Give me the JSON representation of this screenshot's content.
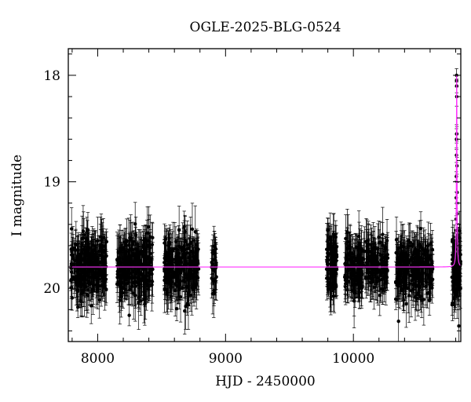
{
  "chart_data": {
    "type": "scatter",
    "title": "OGLE-2025-BLG-0524",
    "xlabel": "HJD - 2450000",
    "ylabel": "I magnitude",
    "xlim": [
      7770,
      10840
    ],
    "ylim": [
      20.5,
      17.75
    ],
    "y_inverted": true,
    "x_ticks": [
      8000,
      9000,
      10000
    ],
    "y_ticks": [
      18,
      19,
      20
    ],
    "grid": false,
    "legend": "none",
    "series": [
      {
        "kind": "observations",
        "marker": "filled-circle-with-errorbars",
        "color": "#000000",
        "baseline_mag": 19.8,
        "seasons": [
          {
            "x_start": 7790,
            "x_end": 8070,
            "mag_center": 19.8,
            "scatter": 0.13,
            "count": 260
          },
          {
            "x_start": 8150,
            "x_end": 8430,
            "mag_center": 19.8,
            "scatter": 0.13,
            "count": 260
          },
          {
            "x_start": 8520,
            "x_end": 8790,
            "mag_center": 19.8,
            "scatter": 0.13,
            "count": 240
          },
          {
            "x_start": 8890,
            "x_end": 8930,
            "mag_center": 19.8,
            "scatter": 0.12,
            "count": 30
          },
          {
            "x_start": 9790,
            "x_end": 9870,
            "mag_center": 19.78,
            "scatter": 0.14,
            "count": 90
          },
          {
            "x_start": 9930,
            "x_end": 10270,
            "mag_center": 19.8,
            "scatter": 0.13,
            "count": 250
          },
          {
            "x_start": 10330,
            "x_end": 10620,
            "mag_center": 19.8,
            "scatter": 0.13,
            "count": 250
          },
          {
            "x_start": 10770,
            "x_end": 10840,
            "mag_center": 19.82,
            "scatter": 0.14,
            "count": 90
          }
        ],
        "peak_points": [
          {
            "x": 10802,
            "y": 19.55
          },
          {
            "x": 10803,
            "y": 19.35
          },
          {
            "x": 10804,
            "y": 19.15
          },
          {
            "x": 10805,
            "y": 18.95
          },
          {
            "x": 10806,
            "y": 18.75
          },
          {
            "x": 10806,
            "y": 18.6
          },
          {
            "x": 10807,
            "y": 18.55
          },
          {
            "x": 10807,
            "y": 18.0
          },
          {
            "x": 10807,
            "y": 18.05
          },
          {
            "x": 10808,
            "y": 18.1
          },
          {
            "x": 10808,
            "y": 18.2
          },
          {
            "x": 10809,
            "y": 18.55
          },
          {
            "x": 10810,
            "y": 18.85
          },
          {
            "x": 10811,
            "y": 19.1
          },
          {
            "x": 10812,
            "y": 19.3
          },
          {
            "x": 10814,
            "y": 19.5
          }
        ]
      },
      {
        "kind": "model",
        "color": "#ff33ff",
        "baseline_mag": 19.8,
        "peak_x": 10808,
        "peak_mag": 18.0,
        "tE": 4.5
      }
    ]
  }
}
